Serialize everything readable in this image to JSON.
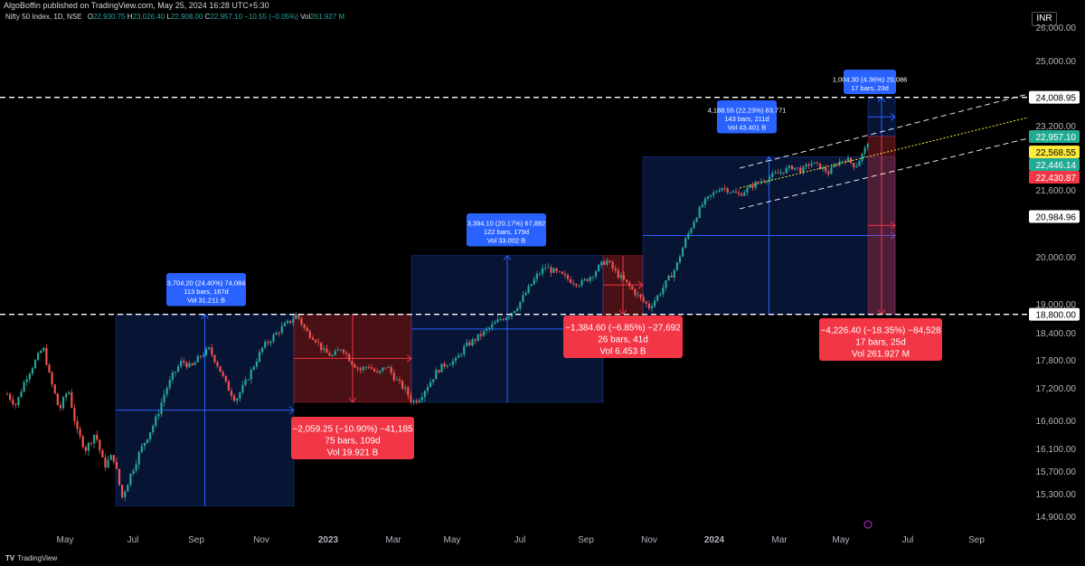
{
  "header": {
    "published": "AlgoBoffin published on TradingView.com, May 25, 2024 16:28 UTC+5:30"
  },
  "legend": {
    "symbol": "Nifty 50 Index, 1D, NSE",
    "o_label": "O",
    "o_value": "22,930.75",
    "h_label": "H",
    "h_value": "23,026.40",
    "l_label": "L",
    "l_value": "22,908.00",
    "c_label": "C",
    "c_value": "22,957.10",
    "change": "−10.55 (−0.05%)",
    "vol_label": "Vol",
    "vol_value": "261.927 M"
  },
  "currency": "INR",
  "footer": {
    "brand": "TradingView"
  },
  "colors": {
    "up": "#26a69a",
    "down": "#ef5350",
    "blue_box": "#2962ff",
    "red_box": "#f23645",
    "green_tag": "#22ab94",
    "yellow_tag": "#ffeb3b",
    "label_blue": "#2962ff",
    "label_red": "#f23645"
  },
  "chart_data": {
    "type": "candlestick",
    "title": "",
    "xlabel": "",
    "ylabel": "",
    "ylim": [
      14500,
      26500
    ],
    "y_ticks": [
      "26,000.00",
      "25,000.00",
      "23,200.00",
      "21,600.00",
      "20,000.00",
      "19,000.00",
      "18,400.00",
      "17,800.00",
      "17,200.00",
      "16,600.00",
      "16,100.00",
      "15,700.00",
      "15,300.00",
      "14,900.00"
    ],
    "x_ticks": [
      "May",
      "Jul",
      "Sep",
      "Nov",
      "2023",
      "Mar",
      "May",
      "Jul",
      "Sep",
      "Nov",
      "2024",
      "Mar",
      "May",
      "Jul",
      "Sep"
    ],
    "price_tags": [
      {
        "label": "24,008.95",
        "color": "#ffffff",
        "text_color": "#000000"
      },
      {
        "label": "22,957.10",
        "color": "#22ab94",
        "text_color": "#ffffff"
      },
      {
        "label": "22,568.55",
        "color": "#ffeb3b",
        "text_color": "#000000"
      },
      {
        "label": "22,446.14",
        "color": "#22ab94",
        "text_color": "#ffffff"
      },
      {
        "label": "22,430.87",
        "color": "#f23645",
        "text_color": "#ffffff"
      },
      {
        "label": "20,984.96",
        "color": "#ffffff",
        "text_color": "#000000"
      },
      {
        "label": "18,800.00",
        "color": "#ffffff",
        "text_color": "#000000"
      }
    ],
    "measure_boxes": [
      {
        "kind": "up",
        "lines": [
          "3,704.20 (24.40%) 74,084",
          "113 bars, 167d",
          "Vol 31.211 B"
        ]
      },
      {
        "kind": "down",
        "lines": [
          "−2,059.25 (−10.90%) −41,185",
          "75 bars, 109d",
          "Vol 19.921 B"
        ]
      },
      {
        "kind": "up",
        "lines": [
          "3,394.10 (20.17%) 67,882",
          "122 bars, 179d",
          "Vol 33.002 B"
        ]
      },
      {
        "kind": "down",
        "lines": [
          "−1,384.60 (−6.85%) −27,692",
          "26 bars, 41d",
          "Vol 6.453 B"
        ]
      },
      {
        "kind": "up",
        "lines": [
          "4,188.55 (22.23%) 83,771",
          "143 bars, 211d",
          "Vol 43.401 B"
        ]
      },
      {
        "kind": "up",
        "lines": [
          "1,004.30 (4.36%) 20,086",
          "17 bars, 23d"
        ]
      },
      {
        "kind": "down",
        "lines": [
          "−4,226.40 (−18.35%) −84,528",
          "17 bars, 25d",
          "Vol 261.927 M"
        ]
      }
    ],
    "key_levels": [
      24008.95,
      18800.0
    ],
    "price_path": [
      [
        0,
        17100
      ],
      [
        10,
        16900
      ],
      [
        20,
        17400
      ],
      [
        30,
        17750
      ],
      [
        40,
        18100
      ],
      [
        48,
        17400
      ],
      [
        58,
        16800
      ],
      [
        68,
        17200
      ],
      [
        78,
        16400
      ],
      [
        88,
        16100
      ],
      [
        98,
        16400
      ],
      [
        108,
        15800
      ],
      [
        118,
        16000
      ],
      [
        128,
        15250
      ],
      [
        135,
        15550
      ],
      [
        145,
        15950
      ],
      [
        155,
        16300
      ],
      [
        165,
        16600
      ],
      [
        175,
        17100
      ],
      [
        185,
        17500
      ],
      [
        195,
        17800
      ],
      [
        205,
        17650
      ],
      [
        215,
        17900
      ],
      [
        225,
        18050
      ],
      [
        235,
        17700
      ],
      [
        245,
        17250
      ],
      [
        255,
        17000
      ],
      [
        265,
        17300
      ],
      [
        275,
        17700
      ],
      [
        285,
        18100
      ],
      [
        295,
        18300
      ],
      [
        305,
        18500
      ],
      [
        315,
        18650
      ],
      [
        323,
        18800
      ],
      [
        333,
        18450
      ],
      [
        343,
        18300
      ],
      [
        353,
        18000
      ],
      [
        363,
        17900
      ],
      [
        373,
        18100
      ],
      [
        383,
        17800
      ],
      [
        393,
        17600
      ],
      [
        403,
        17700
      ],
      [
        413,
        17500
      ],
      [
        423,
        17700
      ],
      [
        433,
        17400
      ],
      [
        443,
        17200
      ],
      [
        452,
        16950
      ],
      [
        460,
        17050
      ],
      [
        470,
        17300
      ],
      [
        480,
        17600
      ],
      [
        490,
        17750
      ],
      [
        500,
        17800
      ],
      [
        510,
        18100
      ],
      [
        520,
        18250
      ],
      [
        530,
        18400
      ],
      [
        540,
        18550
      ],
      [
        550,
        18700
      ],
      [
        560,
        18800
      ],
      [
        570,
        19000
      ],
      [
        580,
        19300
      ],
      [
        590,
        19600
      ],
      [
        600,
        19800
      ],
      [
        610,
        19700
      ],
      [
        620,
        19600
      ],
      [
        630,
        19500
      ],
      [
        640,
        19450
      ],
      [
        650,
        19600
      ],
      [
        660,
        19800
      ],
      [
        668,
        19950
      ],
      [
        678,
        19700
      ],
      [
        688,
        19500
      ],
      [
        698,
        19300
      ],
      [
        708,
        19100
      ],
      [
        716,
        18950
      ],
      [
        726,
        19200
      ],
      [
        736,
        19500
      ],
      [
        746,
        19800
      ],
      [
        756,
        20400
      ],
      [
        766,
        20900
      ],
      [
        776,
        21300
      ],
      [
        786,
        21500
      ],
      [
        796,
        21700
      ],
      [
        806,
        21600
      ],
      [
        816,
        21500
      ],
      [
        826,
        21650
      ],
      [
        836,
        21800
      ],
      [
        846,
        21900
      ],
      [
        856,
        22000
      ],
      [
        866,
        22100
      ],
      [
        876,
        22200
      ],
      [
        886,
        22100
      ],
      [
        896,
        22300
      ],
      [
        906,
        22200
      ],
      [
        916,
        22050
      ],
      [
        926,
        22300
      ],
      [
        936,
        22400
      ],
      [
        946,
        22200
      ],
      [
        956,
        22600
      ],
      [
        962,
        22957
      ]
    ]
  }
}
